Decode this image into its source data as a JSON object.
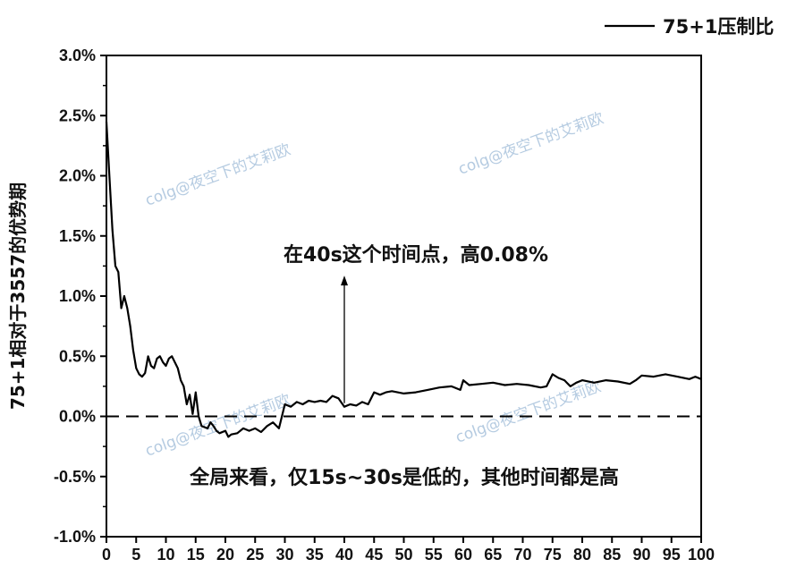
{
  "chart_data": {
    "type": "line",
    "title": "",
    "xlabel": "",
    "ylabel": "75+1相对于3557的优势期",
    "xlim": [
      0,
      100
    ],
    "ylim": [
      -1.0,
      3.0
    ],
    "x_ticks": [
      "0",
      "5",
      "10",
      "15",
      "20",
      "25",
      "30",
      "35",
      "40",
      "45",
      "50",
      "55",
      "60",
      "65",
      "70",
      "75",
      "80",
      "85",
      "90",
      "95",
      "100"
    ],
    "y_ticks": [
      "3.0%",
      "2.5%",
      "2.0%",
      "1.5%",
      "1.0%",
      "0.5%",
      "0.0%",
      "-0.5%",
      "-1.0%"
    ],
    "legend": {
      "position": "top-right",
      "entries": [
        "75+1压制比"
      ]
    },
    "reference_line": {
      "y": 0.0,
      "style": "dashed"
    },
    "series": [
      {
        "name": "75+1压制比",
        "color": "#000000",
        "points": [
          [
            0,
            2.45
          ],
          [
            0.5,
            2.0
          ],
          [
            1,
            1.55
          ],
          [
            1.5,
            1.25
          ],
          [
            2,
            1.2
          ],
          [
            2.5,
            0.9
          ],
          [
            3,
            1.0
          ],
          [
            3.5,
            0.9
          ],
          [
            4,
            0.75
          ],
          [
            4.5,
            0.55
          ],
          [
            5,
            0.4
          ],
          [
            5.5,
            0.35
          ],
          [
            6,
            0.33
          ],
          [
            6.5,
            0.36
          ],
          [
            7,
            0.5
          ],
          [
            7.5,
            0.42
          ],
          [
            8,
            0.4
          ],
          [
            8.5,
            0.48
          ],
          [
            9,
            0.5
          ],
          [
            9.5,
            0.45
          ],
          [
            10,
            0.42
          ],
          [
            10.5,
            0.48
          ],
          [
            11,
            0.5
          ],
          [
            11.5,
            0.45
          ],
          [
            12,
            0.4
          ],
          [
            12.5,
            0.3
          ],
          [
            13,
            0.25
          ],
          [
            13.5,
            0.1
          ],
          [
            14,
            0.18
          ],
          [
            14.5,
            0.02
          ],
          [
            15,
            0.2
          ],
          [
            15.5,
            0.0
          ],
          [
            16,
            -0.08
          ],
          [
            17,
            -0.1
          ],
          [
            17.5,
            -0.05
          ],
          [
            18,
            -0.08
          ],
          [
            18.5,
            -0.12
          ],
          [
            19,
            -0.14
          ],
          [
            20,
            -0.12
          ],
          [
            20.5,
            -0.17
          ],
          [
            21,
            -0.15
          ],
          [
            22,
            -0.14
          ],
          [
            23,
            -0.1
          ],
          [
            24,
            -0.12
          ],
          [
            25,
            -0.1
          ],
          [
            26,
            -0.13
          ],
          [
            27,
            -0.08
          ],
          [
            28,
            -0.05
          ],
          [
            29,
            -0.1
          ],
          [
            29.5,
            0.0
          ],
          [
            30,
            0.1
          ],
          [
            31,
            0.08
          ],
          [
            32,
            0.12
          ],
          [
            33,
            0.1
          ],
          [
            34,
            0.13
          ],
          [
            35,
            0.12
          ],
          [
            36,
            0.13
          ],
          [
            37,
            0.12
          ],
          [
            38,
            0.17
          ],
          [
            39,
            0.15
          ],
          [
            40,
            0.08
          ],
          [
            41,
            0.1
          ],
          [
            42,
            0.09
          ],
          [
            43,
            0.12
          ],
          [
            44,
            0.1
          ],
          [
            45,
            0.2
          ],
          [
            46,
            0.18
          ],
          [
            47,
            0.2
          ],
          [
            48,
            0.21
          ],
          [
            50,
            0.19
          ],
          [
            52,
            0.2
          ],
          [
            54,
            0.22
          ],
          [
            56,
            0.24
          ],
          [
            58,
            0.25
          ],
          [
            59.5,
            0.22
          ],
          [
            60,
            0.3
          ],
          [
            61,
            0.26
          ],
          [
            63,
            0.27
          ],
          [
            65,
            0.28
          ],
          [
            67,
            0.26
          ],
          [
            69,
            0.27
          ],
          [
            71,
            0.26
          ],
          [
            73,
            0.24
          ],
          [
            74,
            0.25
          ],
          [
            75,
            0.35
          ],
          [
            76,
            0.32
          ],
          [
            77,
            0.3
          ],
          [
            78,
            0.25
          ],
          [
            79,
            0.28
          ],
          [
            80,
            0.3
          ],
          [
            82,
            0.28
          ],
          [
            84,
            0.3
          ],
          [
            86,
            0.29
          ],
          [
            88,
            0.27
          ],
          [
            89,
            0.3
          ],
          [
            90,
            0.34
          ],
          [
            92,
            0.33
          ],
          [
            94,
            0.35
          ],
          [
            96,
            0.33
          ],
          [
            98,
            0.31
          ],
          [
            99,
            0.33
          ],
          [
            100,
            0.31
          ]
        ]
      }
    ],
    "annotations": [
      {
        "id": "arrow",
        "text": "在40s这个时间点，高0.08%",
        "x": 40,
        "y": 0.08,
        "arrow_to_y": 1.17,
        "text_y": 1.35
      },
      {
        "id": "summary",
        "text": "全局来看，仅15s~30s是低的，其他时间都是高"
      }
    ],
    "watermark": "colg@夜空下的艾莉欧",
    "colors": {
      "line": "#000000",
      "watermark": "#a9c3dc"
    }
  }
}
